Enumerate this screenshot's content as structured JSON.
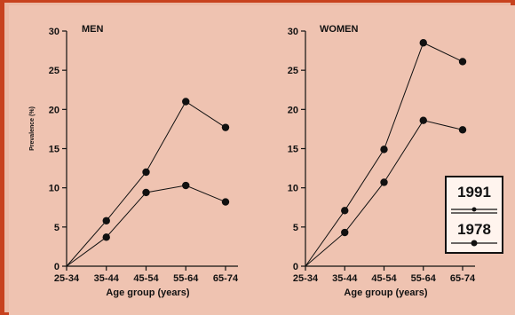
{
  "chart_data": [
    {
      "type": "line",
      "title": "MEN",
      "xlabel": "Age group (years)",
      "ylabel": "Prevalence (%)",
      "categories": [
        "25-34",
        "35-44",
        "45-54",
        "55-64",
        "65-74"
      ],
      "ylim": [
        0,
        30
      ],
      "yticks": [
        0,
        5,
        10,
        15,
        20,
        25,
        30
      ],
      "series": [
        {
          "name": "1991",
          "values": [
            0,
            5.8,
            12.0,
            21.0,
            17.7
          ]
        },
        {
          "name": "1978",
          "values": [
            0,
            3.7,
            9.4,
            10.3,
            8.2
          ]
        }
      ]
    },
    {
      "type": "line",
      "title": "WOMEN",
      "xlabel": "Age group (years)",
      "ylabel": "",
      "categories": [
        "25-34",
        "35-44",
        "45-54",
        "55-64",
        "65-74"
      ],
      "ylim": [
        0,
        30
      ],
      "yticks": [
        0,
        5,
        10,
        15,
        20,
        25,
        30
      ],
      "series": [
        {
          "name": "1991",
          "values": [
            0,
            7.1,
            14.9,
            28.5,
            26.1
          ]
        },
        {
          "name": "1978",
          "values": [
            0,
            4.3,
            10.7,
            18.6,
            17.4
          ]
        }
      ]
    }
  ],
  "legend": {
    "placement": "right",
    "items": [
      {
        "label": "1991",
        "marker": "small-dot"
      },
      {
        "label": "1978",
        "marker": "large-dot"
      }
    ]
  }
}
